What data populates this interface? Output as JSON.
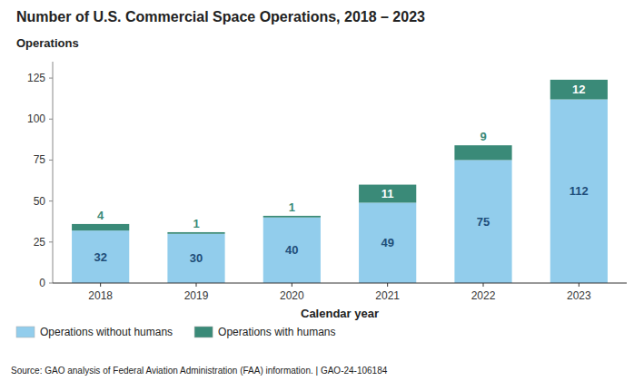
{
  "chart_data": {
    "type": "bar",
    "stacked": true,
    "title": "Number of U.S. Commercial Space Operations, 2018 – 2023",
    "y_label": "Operations",
    "x_label": "Calendar year",
    "categories": [
      "2018",
      "2019",
      "2020",
      "2021",
      "2022",
      "2023"
    ],
    "series": [
      {
        "name": "Operations without humans",
        "color": "#92CDEC",
        "values": [
          32,
          30,
          40,
          49,
          75,
          112
        ]
      },
      {
        "name": "Operations with humans",
        "color": "#3A8A78",
        "values": [
          4,
          1,
          1,
          11,
          9,
          12
        ]
      }
    ],
    "ylim": [
      0,
      135
    ],
    "yticks": [
      0,
      25,
      50,
      75,
      100,
      125
    ],
    "grid": false,
    "legend": "bottom",
    "data_labels": true,
    "annotations": [
      "Source: GAO analysis of Federal Aviation Administration (FAA) information.  |  GAO-24-106184"
    ]
  }
}
